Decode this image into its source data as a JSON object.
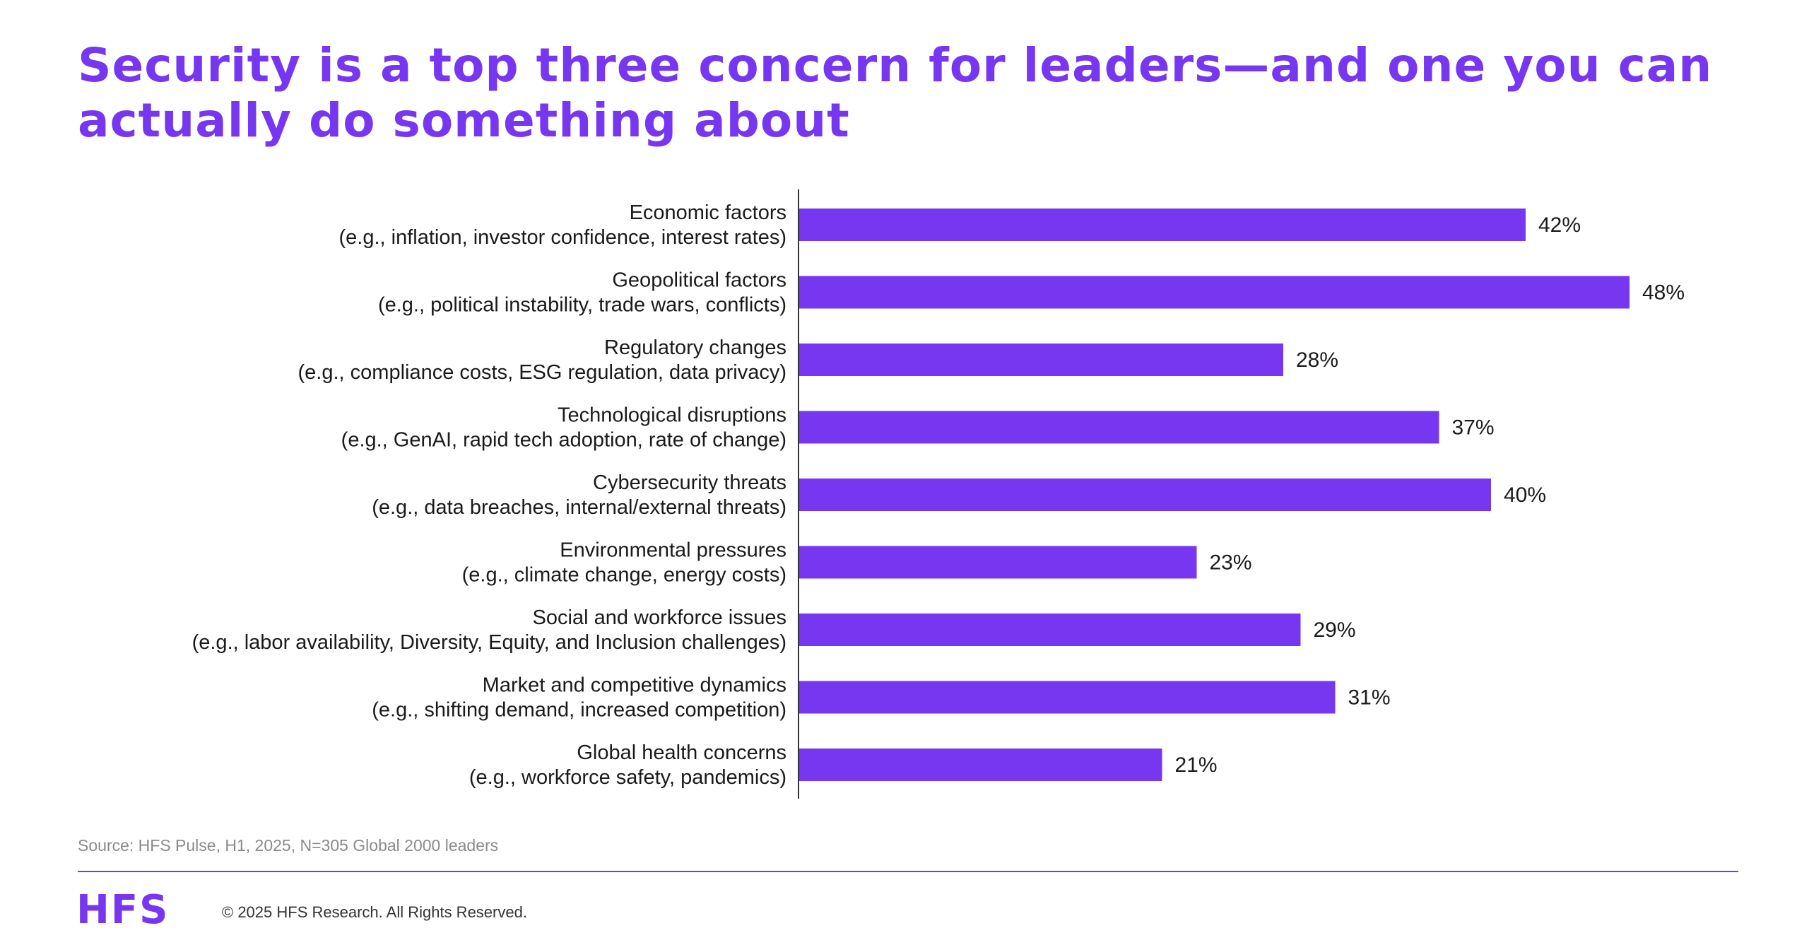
{
  "header": {
    "title": "Security is a top three concern for leaders—and one you can actually do something about"
  },
  "chart_data": {
    "type": "bar",
    "orientation": "horizontal",
    "categories": [
      [
        "Economic factors",
        "(e.g., inflation, investor confidence, interest rates)"
      ],
      [
        "Geopolitical factors",
        "(e.g., political instability, trade wars, conflicts)"
      ],
      [
        "Regulatory changes",
        "(e.g., compliance costs, ESG regulation, data privacy)"
      ],
      [
        "Technological disruptions",
        "(e.g., GenAI, rapid tech adoption, rate of change)"
      ],
      [
        "Cybersecurity threats",
        "(e.g., data breaches, internal/external threats)"
      ],
      [
        "Environmental pressures",
        "(e.g., climate change, energy costs)"
      ],
      [
        "Social and workforce issues",
        "(e.g., labor availability, Diversity, Equity, and Inclusion challenges)"
      ],
      [
        "Market and competitive dynamics",
        "(e.g., shifting demand, increased competition)"
      ],
      [
        "Global health concerns",
        "(e.g., workforce safety, pandemics)"
      ]
    ],
    "values": [
      42,
      48,
      28,
      37,
      40,
      23,
      29,
      31,
      21
    ],
    "value_labels": [
      "42%",
      "48%",
      "28%",
      "37%",
      "40%",
      "23%",
      "29%",
      "31%",
      "21%"
    ],
    "xlim": [
      0,
      50
    ],
    "grid": false,
    "bar_color": "#7737F0"
  },
  "footer": {
    "source": "Source: HFS Pulse, H1, 2025, N=305 Global 2000 leaders",
    "logo_text": "HFS",
    "copyright": "© 2025 HFS Research. All Rights Reserved."
  },
  "colors": {
    "accent": "#7737F0",
    "text": "#1a1a1a",
    "muted": "#8a8a8a"
  }
}
